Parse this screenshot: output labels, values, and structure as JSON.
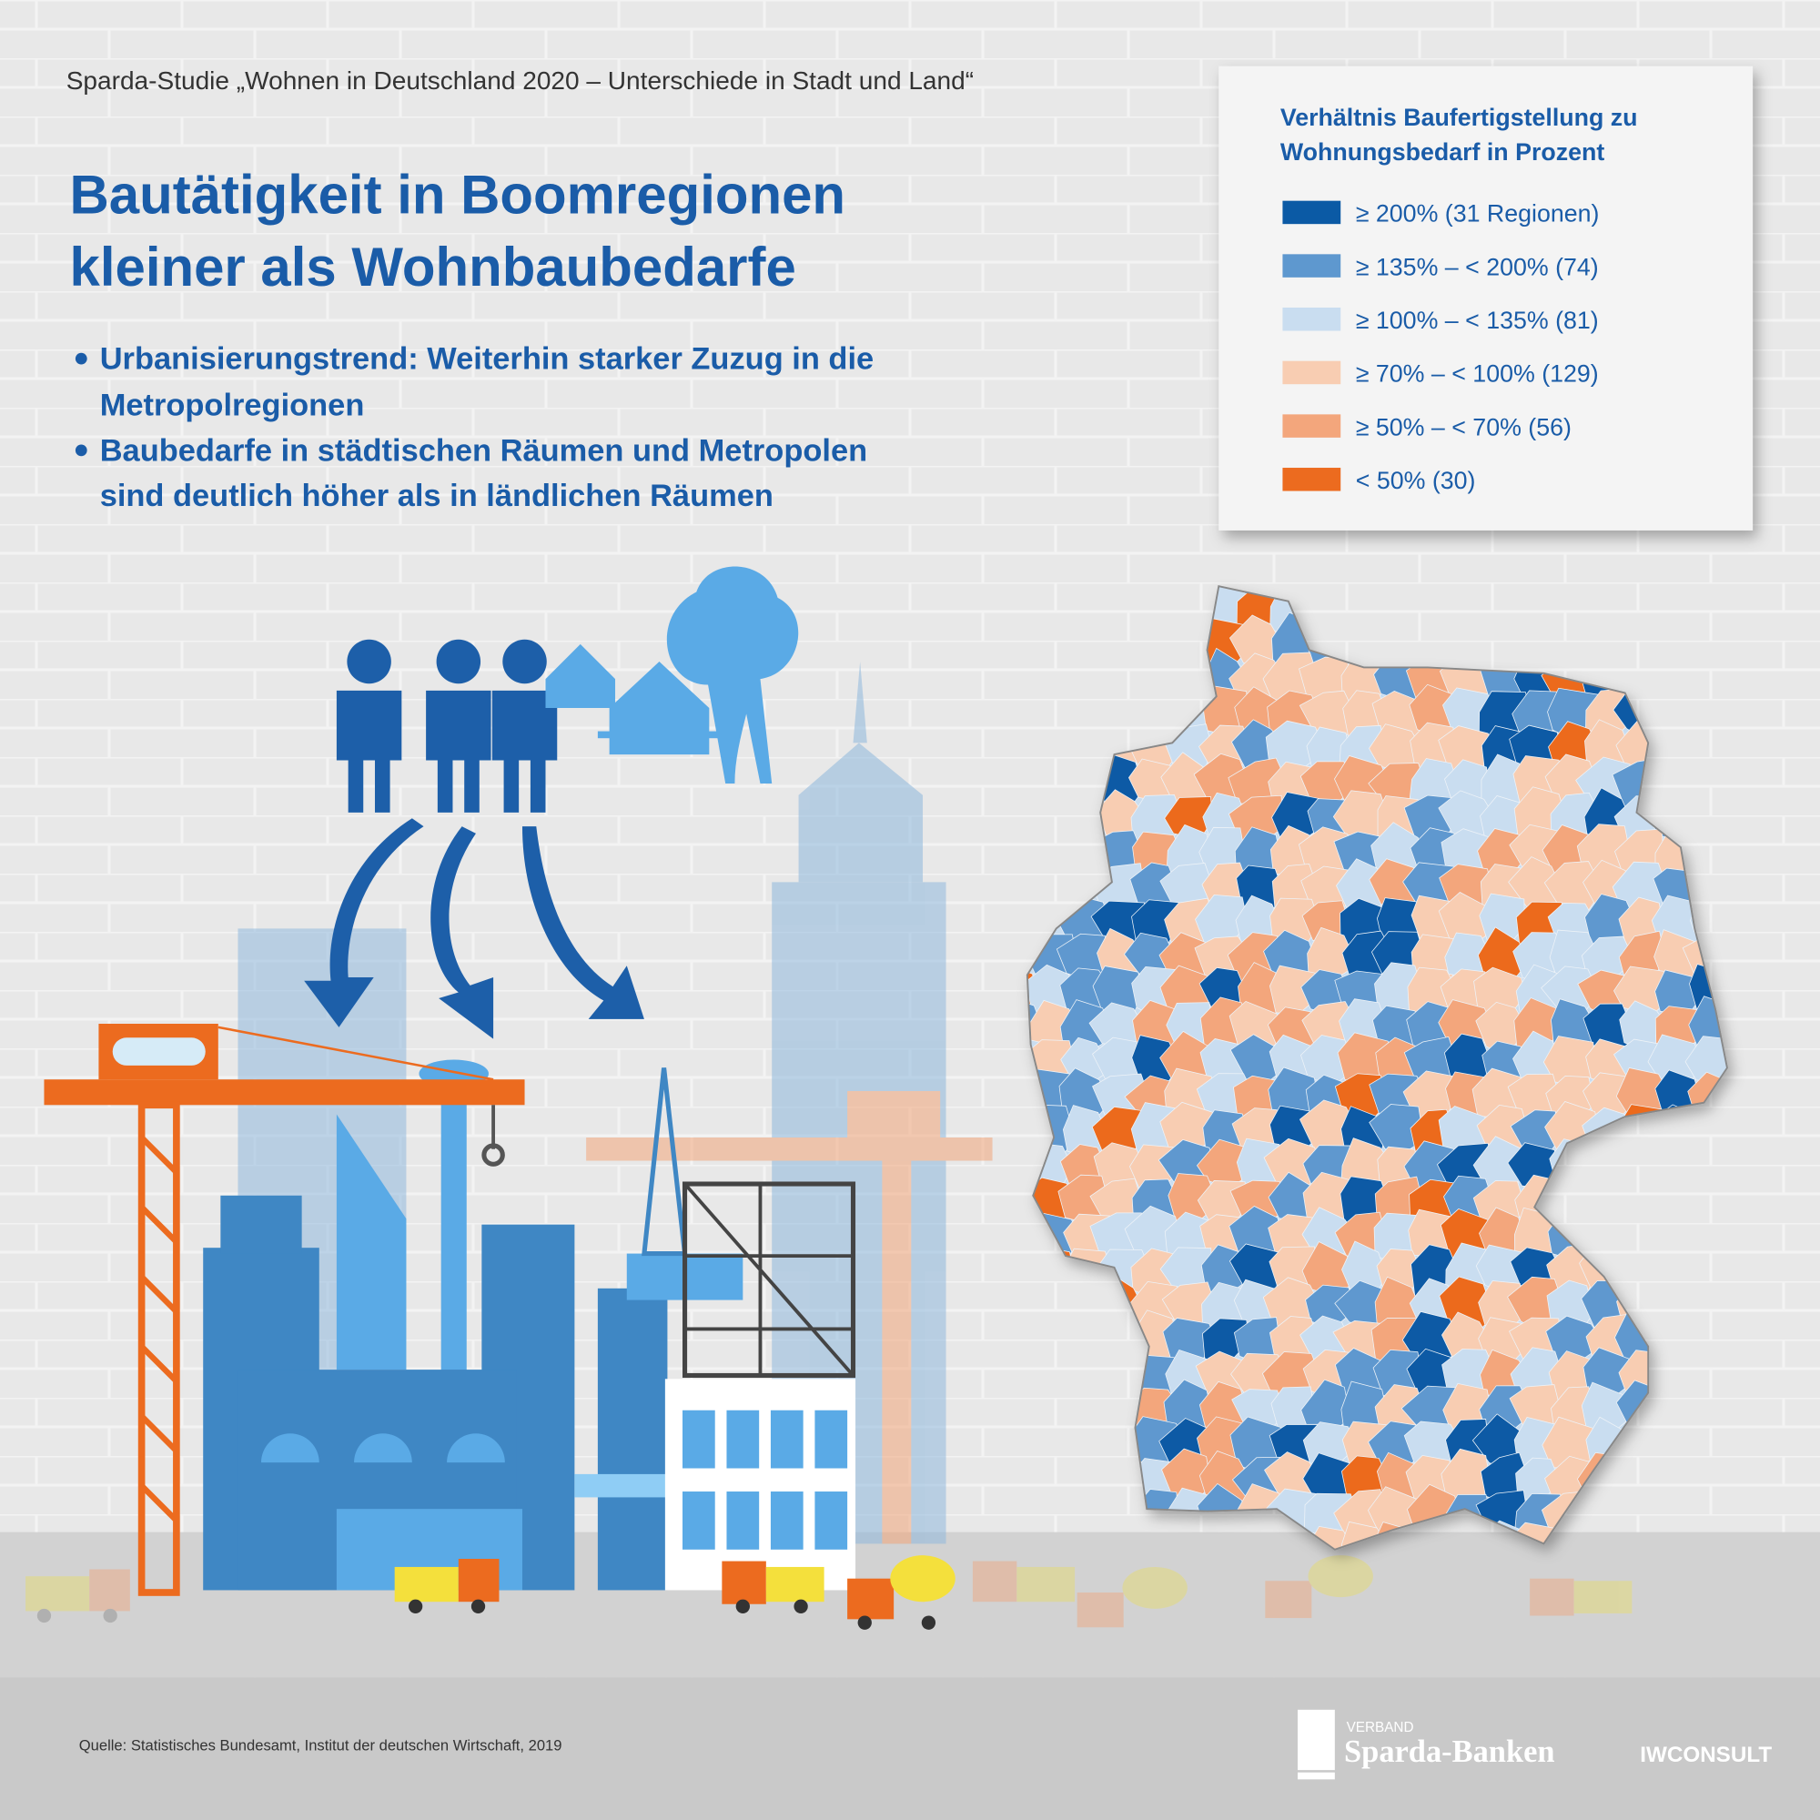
{
  "header": {
    "study": "Sparda-Studie „Wohnen in Deutschland 2020 – Unterschiede in Stadt und Land“",
    "title": [
      "Bautätigkeit in Boomregionen",
      "kleiner als Wohnbaubedarfe"
    ],
    "bullets": [
      [
        "Urbanisierungstrend: Weiterhin starker Zuzug in die",
        "Metropolregionen"
      ],
      [
        "Baubedarfe in städtischen Räumen und Metropolen",
        "sind deutlich höher als in ländlichen Räumen"
      ]
    ]
  },
  "legend": {
    "title": [
      "Verhältnis Baufertigstellung zu",
      "Wohnungsbedarf in Prozent"
    ],
    "items": [
      {
        "label": "≥ 200% (31 Regionen)",
        "color": "#0b5aa5"
      },
      {
        "label": "≥ 135% – <  200% (74)",
        "color": "#5e98cf"
      },
      {
        "label": "≥ 100% – < 135% (81)",
        "color": "#c9ddf0"
      },
      {
        "label": "≥ 70% – < 100% (129)",
        "color": "#f8cdb2"
      },
      {
        "label": "≥ 50% – < 70% (56)",
        "color": "#f3a67c"
      },
      {
        "label": "< 50% (30)",
        "color": "#ec6b1f"
      }
    ]
  },
  "footer": {
    "source": "Quelle: Statistisches Bundesamt, Institut der deutschen Wirtschaft, 2019",
    "logo_small": "VERBAND",
    "logo": "Sparda-Banken",
    "partner": "IWCONSULT"
  }
}
